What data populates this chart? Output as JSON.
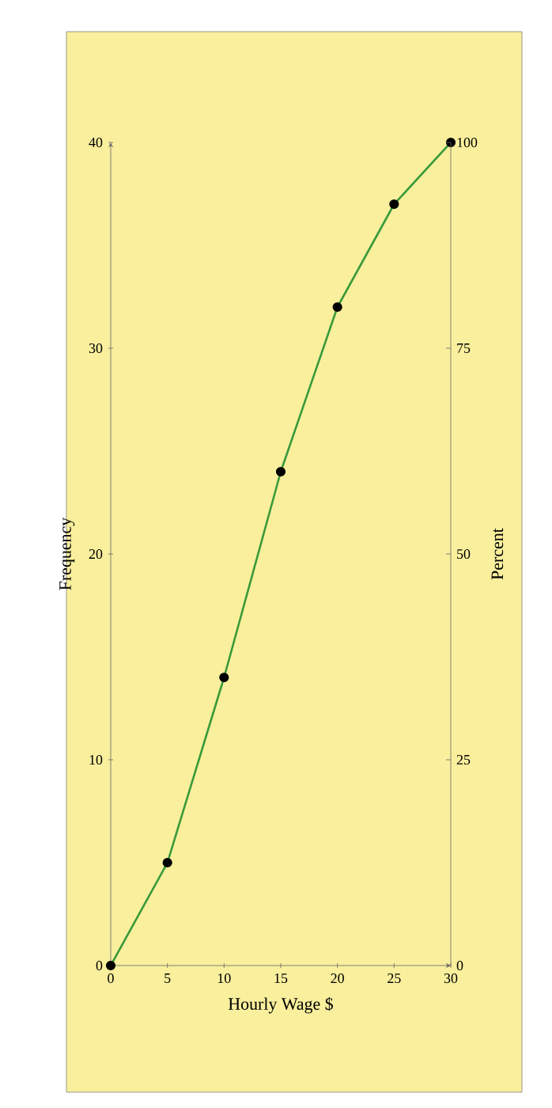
{
  "chart_data": {
    "type": "line",
    "xlabel": "Hourly Wage $",
    "ylabel": "Frequency",
    "y2label": "Percent",
    "x": [
      0,
      5,
      10,
      15,
      20,
      25,
      30
    ],
    "series": [
      {
        "color": "#3a9a3a",
        "values": [
          0,
          5,
          14,
          24,
          32,
          37,
          40
        ]
      }
    ],
    "xlim": [
      0,
      30
    ],
    "xticks": [
      0,
      5,
      10,
      15,
      20,
      25,
      30
    ],
    "ylim": [
      0,
      40
    ],
    "yticks": [
      0,
      10,
      20,
      30,
      40
    ],
    "y2lim": [
      0,
      100
    ],
    "y2ticks": [
      0,
      25,
      50,
      75,
      100
    ],
    "marker": "circle",
    "line_style": "solid",
    "grid": false
  }
}
